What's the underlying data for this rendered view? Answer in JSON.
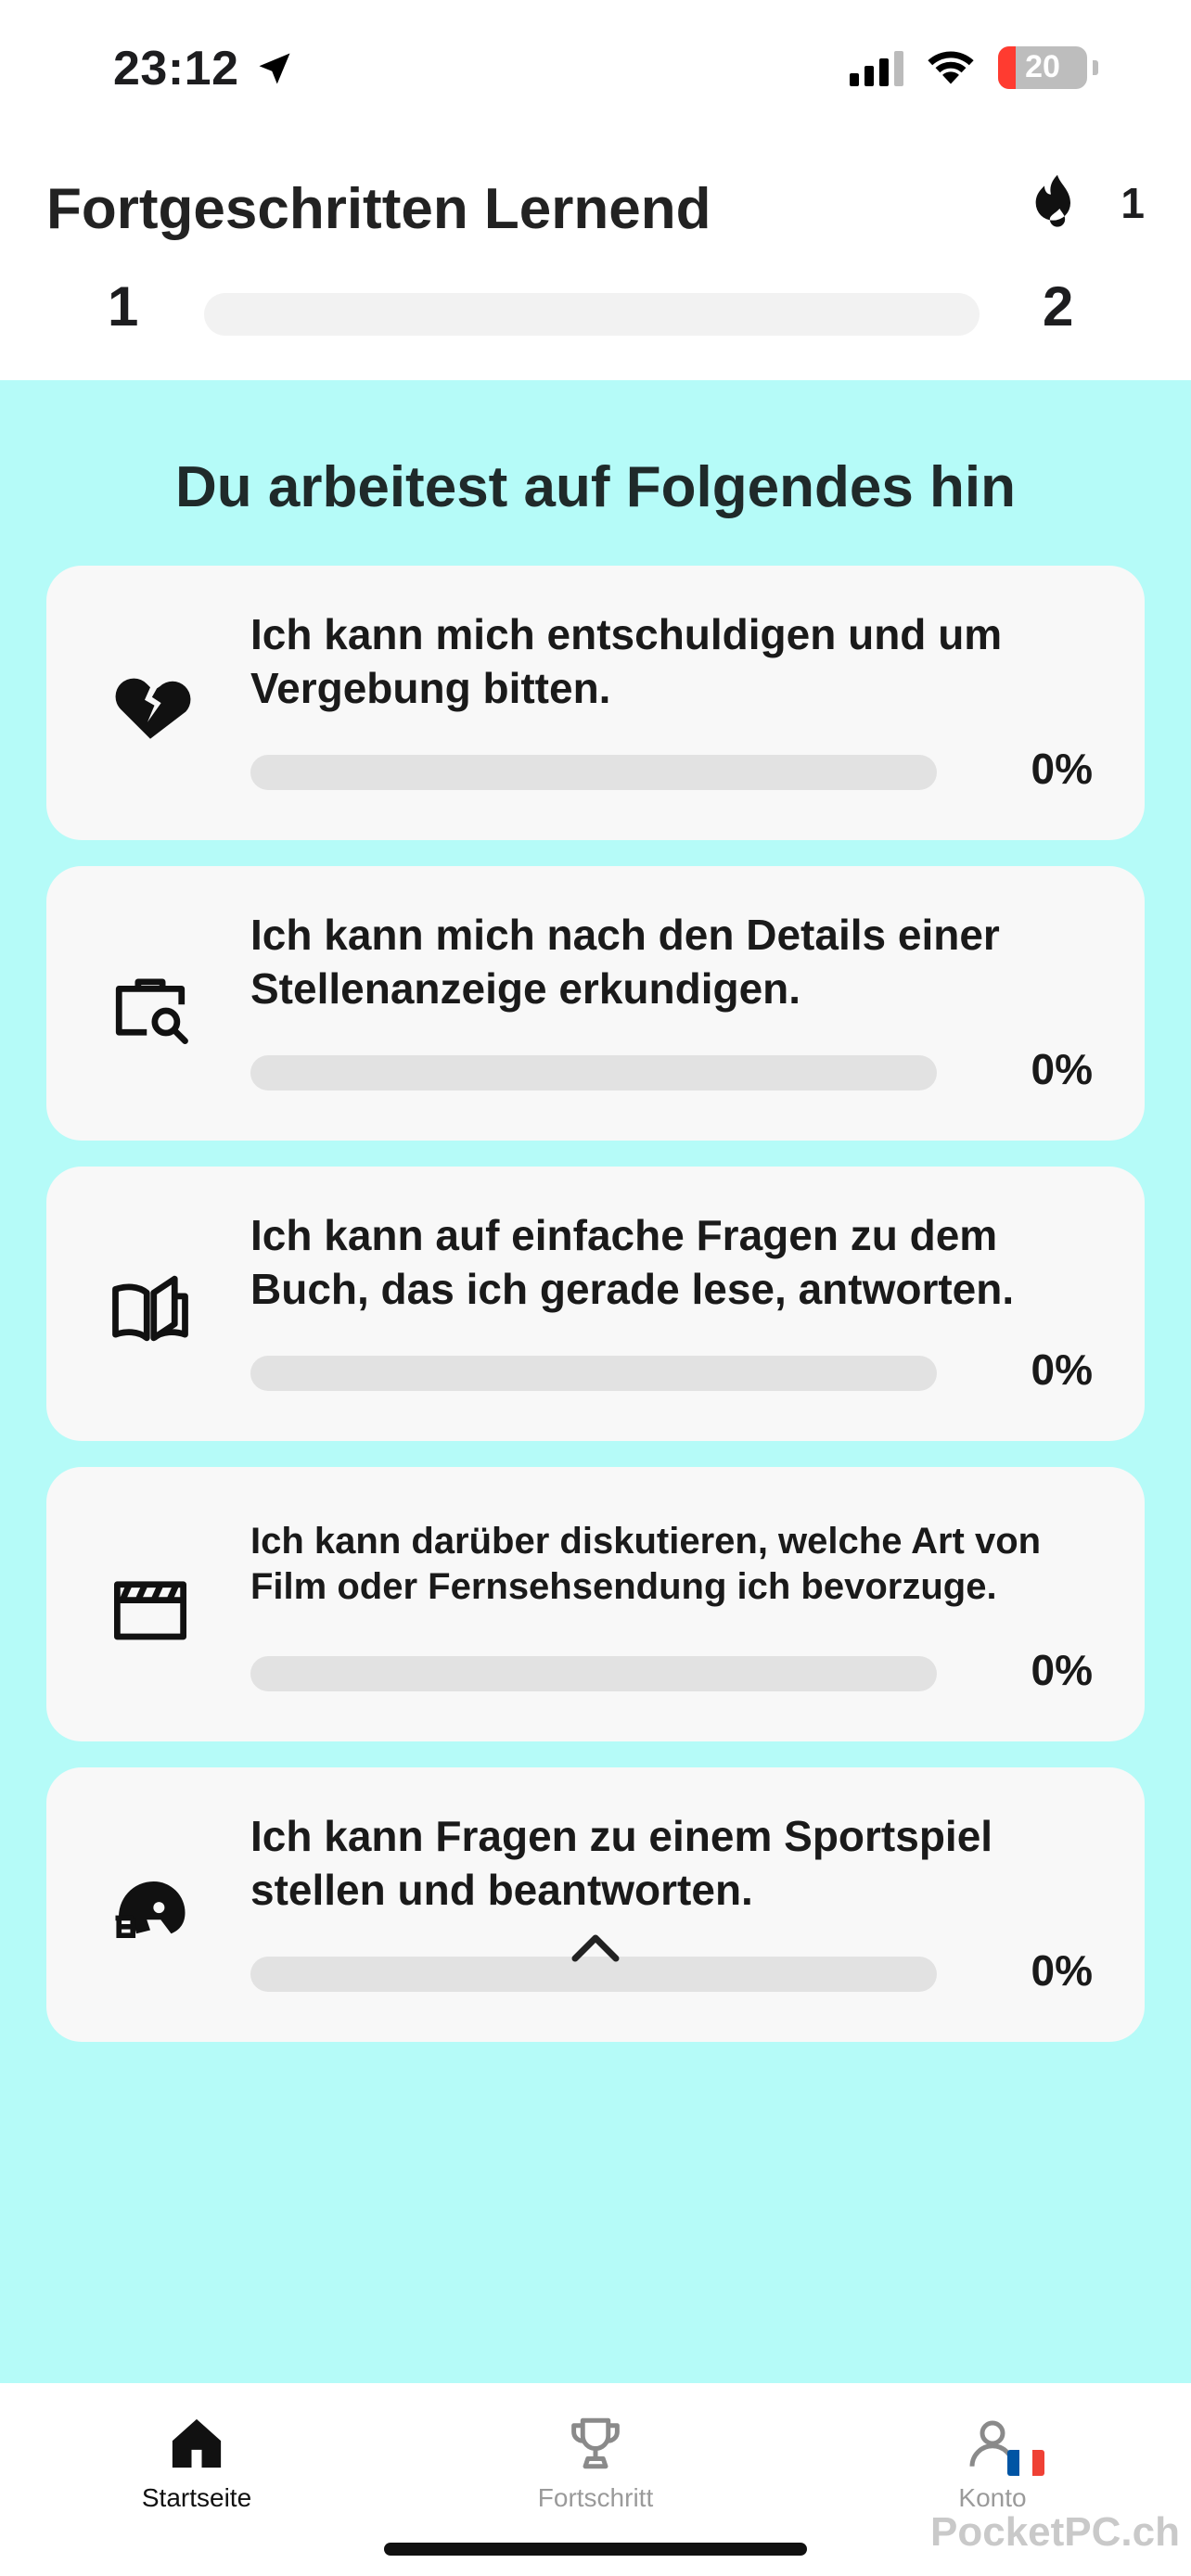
{
  "status_bar": {
    "time": "23:12",
    "battery": "20",
    "battery_level": 0.2,
    "battery_color": "#ff3b30"
  },
  "header": {
    "title": "Fortgeschritten Lernend",
    "streak_icon": "flame-icon",
    "streak_count": "1",
    "level_current": "1",
    "level_next": "2",
    "level_progress": 0.0
  },
  "main": {
    "section_title": "Du arbeitest auf Folgendes hin",
    "background_color": "#b5fbf8",
    "goals": [
      {
        "icon": "broken-heart-icon",
        "text": "Ich kann mich entschuldigen und um Vergebung bitten.",
        "percent": "0%",
        "progress": 0
      },
      {
        "icon": "briefcase-search-icon",
        "text": "Ich kann mich nach den Details einer Stellenanzeige erkundigen.",
        "percent": "0%",
        "progress": 0
      },
      {
        "icon": "open-book-icon",
        "text": "Ich kann auf einfache Fragen zu dem Buch, das ich gerade lese, antworten.",
        "percent": "0%",
        "progress": 0
      },
      {
        "icon": "clapperboard-icon",
        "text": "Ich kann darüber diskutieren, welche Art von Film oder Fernsehsendung ich bevorzuge.",
        "percent": "0%",
        "progress": 0
      },
      {
        "icon": "football-helmet-icon",
        "text": "Ich kann Fragen zu einem Sportspiel stellen und beantworten.",
        "percent": "0%",
        "progress": 0
      }
    ]
  },
  "tab_bar": {
    "home_label": "Startseite",
    "progress_label": "Fortschritt",
    "account_label": "Konto"
  },
  "watermark": "PocketPC.ch"
}
